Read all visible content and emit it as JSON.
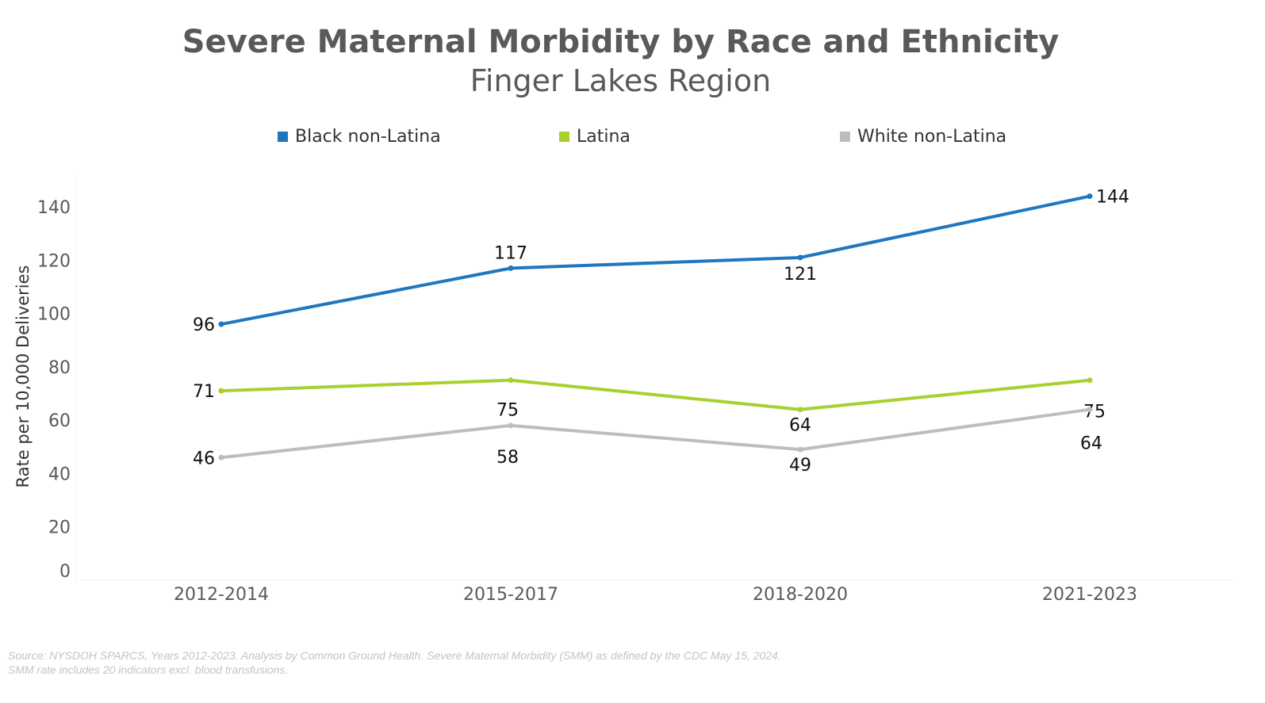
{
  "chart_data": {
    "type": "line",
    "title": "Severe Maternal Morbidity by Race and Ethnicity",
    "subtitle": "Finger Lakes Region",
    "ylabel": "Rate per 10,000 Deliveries",
    "xlabel": "",
    "categories": [
      "2012-2014",
      "2015-2017",
      "2018-2020",
      "2021-2023"
    ],
    "ylim": [
      0,
      150
    ],
    "yticks": [
      0,
      20,
      40,
      60,
      80,
      100,
      120,
      140
    ],
    "grid": false,
    "legend_placement": "top",
    "series": [
      {
        "name": "Black non-Latina",
        "color": "#1f77c0",
        "values": [
          96,
          117,
          121,
          144
        ]
      },
      {
        "name": "Latina",
        "color": "#a8d02f",
        "values": [
          71,
          75,
          64,
          75
        ]
      },
      {
        "name": "White non-Latina",
        "color": "#bdbdbd",
        "values": [
          46,
          58,
          49,
          64
        ]
      }
    ]
  },
  "source": {
    "line1": "Source: NYSDOH SPARCS, Years 2012-2023. Analysis by Common Ground Health. Severe Maternal Morbidity (SMM) as defined by the CDC May 15, 2024.",
    "line2": "SMM rate includes 20 indicators excl. blood transfusions."
  }
}
